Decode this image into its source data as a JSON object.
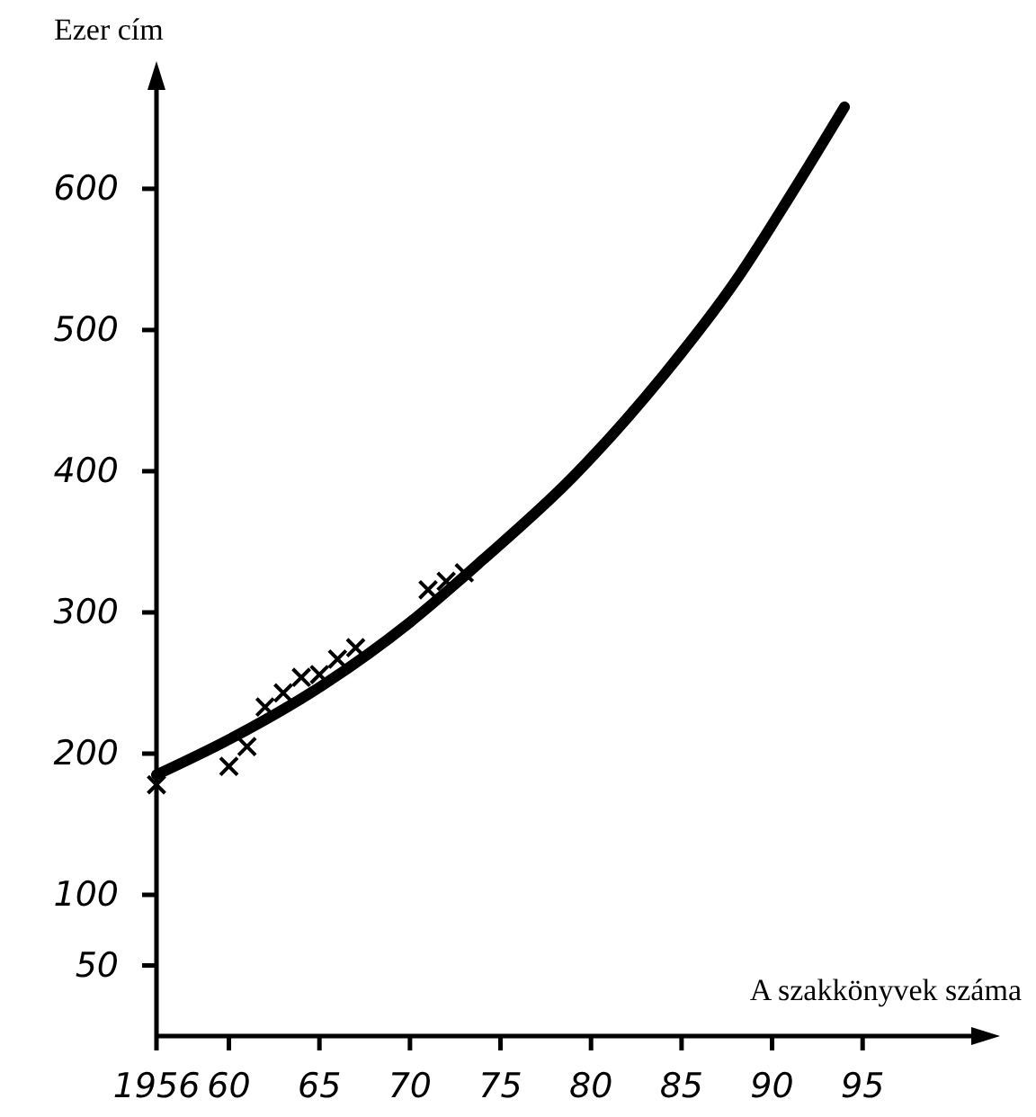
{
  "chart_data": {
    "type": "line",
    "xlabel": "A szakkönyvek száma",
    "ylabel": "Ezer cím",
    "xlim": [
      1956,
      2001
    ],
    "xticks": [
      1956,
      {
        "value": 1960,
        "label": "60"
      },
      {
        "value": 1965,
        "label": "65"
      },
      {
        "value": 1970,
        "label": "70"
      },
      {
        "value": 1975,
        "label": "75"
      },
      {
        "value": 1980,
        "label": "80"
      },
      {
        "value": 1985,
        "label": "85"
      },
      {
        "value": 1990,
        "label": "90"
      },
      {
        "value": 1995,
        "label": "95"
      }
    ],
    "ylim": [
      0,
      670
    ],
    "yticks": [
      50,
      100,
      200,
      300,
      400,
      500,
      600
    ],
    "grid": false,
    "series": [
      {
        "type": "line",
        "color": "#000000",
        "marker": "none",
        "x": [
          1956,
          1960,
          1965,
          1970,
          1974,
          1979,
          1984,
          1988,
          1991,
          1994
        ],
        "values": [
          185,
          210,
          247,
          293,
          337,
          396,
          468,
          535,
          595,
          658
        ]
      },
      {
        "type": "scatter",
        "color": "#000000",
        "marker": "cross",
        "x": [
          1956,
          1960,
          1961,
          1962,
          1963,
          1964,
          1965,
          1966,
          1967,
          1971,
          1972,
          1973
        ],
        "values": [
          178,
          191,
          205,
          233,
          243,
          254,
          256,
          267,
          275,
          316,
          322,
          328
        ]
      }
    ]
  }
}
